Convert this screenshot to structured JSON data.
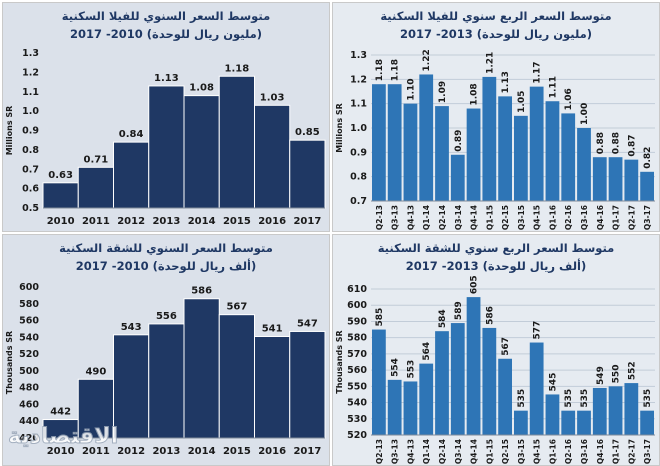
{
  "colors": {
    "navy": "#1f3864",
    "blue": "#2e75b6"
  },
  "panels": [
    {
      "title1": "متوسط السعر السنوي للفيلا السكنية",
      "title2": "(مليون ريال للوحدة) 2010- 2017"
    },
    {
      "title1": "متوسط السعر الربع سنوي للفيلا السكنية",
      "title2": "(مليون ريال للوحدة) 2013- 2017"
    },
    {
      "title1": "متوسط السعر السنوي للشقة السكنية",
      "title2": "(ألف ريال للوحدة) 2010- 2017"
    },
    {
      "title1": "متوسط السعر الربع سنوي للشقة السكنية",
      "title2": "(ألف ريال للوحدة) 2013- 2017"
    }
  ],
  "logo_text": "الاقتصادية",
  "chart_data": [
    {
      "type": "bar",
      "title": "متوسط السعر السنوي للفيلا السكنية (مليون ريال للوحدة) 2010- 2017",
      "ylabel": "Millions SR",
      "categories": [
        "2010",
        "2011",
        "2012",
        "2013",
        "2014",
        "2015",
        "2016",
        "2017"
      ],
      "values": [
        0.63,
        0.71,
        0.84,
        1.13,
        1.08,
        1.18,
        1.03,
        0.85
      ],
      "labels": [
        "0.63",
        "0.71",
        "0.84",
        "1.13",
        "1.08",
        "1.18",
        "1.03",
        "0.85"
      ],
      "ylim": [
        0.5,
        1.3
      ],
      "yticks": [
        "0.5",
        "0.6",
        "0.7",
        "0.8",
        "0.9",
        "1.0",
        "1.1",
        "1.2",
        "1.3"
      ],
      "color": "#1f3864",
      "grid": false
    },
    {
      "type": "bar",
      "title": "متوسط السعر الربع سنوي للفيلا السكنية (مليون ريال للوحدة) 2013- 2017",
      "ylabel": "Millions SR",
      "categories": [
        "Q2-13",
        "Q3-13",
        "Q4-13",
        "Q1-14",
        "Q2-14",
        "Q3-14",
        "Q4-14",
        "Q1-15",
        "Q2-15",
        "Q3-15",
        "Q4-15",
        "Q1-16",
        "Q2-16",
        "Q3-16",
        "Q4-16",
        "Q1-17",
        "Q2-17",
        "Q3-17"
      ],
      "values": [
        1.18,
        1.18,
        1.1,
        1.22,
        1.09,
        0.89,
        1.08,
        1.21,
        1.13,
        1.05,
        1.17,
        1.11,
        1.06,
        1.0,
        0.88,
        0.88,
        0.87,
        0.82
      ],
      "labels": [
        "1.18",
        "1.18",
        "1.10",
        "1.22",
        "1.09",
        "0.89",
        "1.08",
        "1.21",
        "1.13",
        "1.05",
        "1.17",
        "1.11",
        "1.06",
        "1.00",
        "0.88",
        "0.88",
        "0.87",
        "0.82"
      ],
      "ylim": [
        0.7,
        1.3
      ],
      "yticks": [
        "0.7",
        "0.8",
        "0.9",
        "1.0",
        "1.1",
        "1.2",
        "1.3"
      ],
      "color": "#2e75b6",
      "grid": true
    },
    {
      "type": "bar",
      "title": "متوسط السعر السنوي للشقة السكنية (ألف ريال للوحدة) 2010- 2017",
      "ylabel": "Thousands SR",
      "categories": [
        "2010",
        "2011",
        "2012",
        "2013",
        "2014",
        "2015",
        "2016",
        "2017"
      ],
      "values": [
        442,
        490,
        543,
        556,
        586,
        567,
        541,
        547
      ],
      "labels": [
        "442",
        "490",
        "543",
        "556",
        "586",
        "567",
        "541",
        "547"
      ],
      "ylim": [
        420,
        600
      ],
      "yticks": [
        "420",
        "440",
        "460",
        "480",
        "500",
        "520",
        "540",
        "560",
        "580",
        "600"
      ],
      "color": "#1f3864",
      "grid": false
    },
    {
      "type": "bar",
      "title": "متوسط السعر الربع سنوي للشقة السكنية (ألف ريال للوحدة) 2013- 2017",
      "ylabel": "Thousands SR",
      "categories": [
        "Q2-13",
        "Q3-13",
        "Q4-13",
        "Q1-14",
        "Q2-14",
        "Q3-14",
        "Q4-14",
        "Q1-15",
        "Q2-15",
        "Q3-15",
        "Q4-15",
        "Q1-16",
        "Q2-16",
        "Q3-16",
        "Q4-16",
        "Q1-17",
        "Q2-17",
        "Q3-17"
      ],
      "values": [
        585,
        554,
        553,
        564,
        584,
        589,
        605,
        586,
        567,
        535,
        577,
        545,
        535,
        535,
        549,
        550,
        552,
        535
      ],
      "labels": [
        "585",
        "554",
        "553",
        "564",
        "584",
        "589",
        "605",
        "586",
        "567",
        "535",
        "577",
        "545",
        "535",
        "535",
        "549",
        "550",
        "552",
        "535"
      ],
      "ylim": [
        520,
        610
      ],
      "yticks": [
        "520",
        "530",
        "540",
        "550",
        "560",
        "570",
        "580",
        "590",
        "600",
        "610"
      ],
      "color": "#2e75b6",
      "grid": true
    }
  ]
}
